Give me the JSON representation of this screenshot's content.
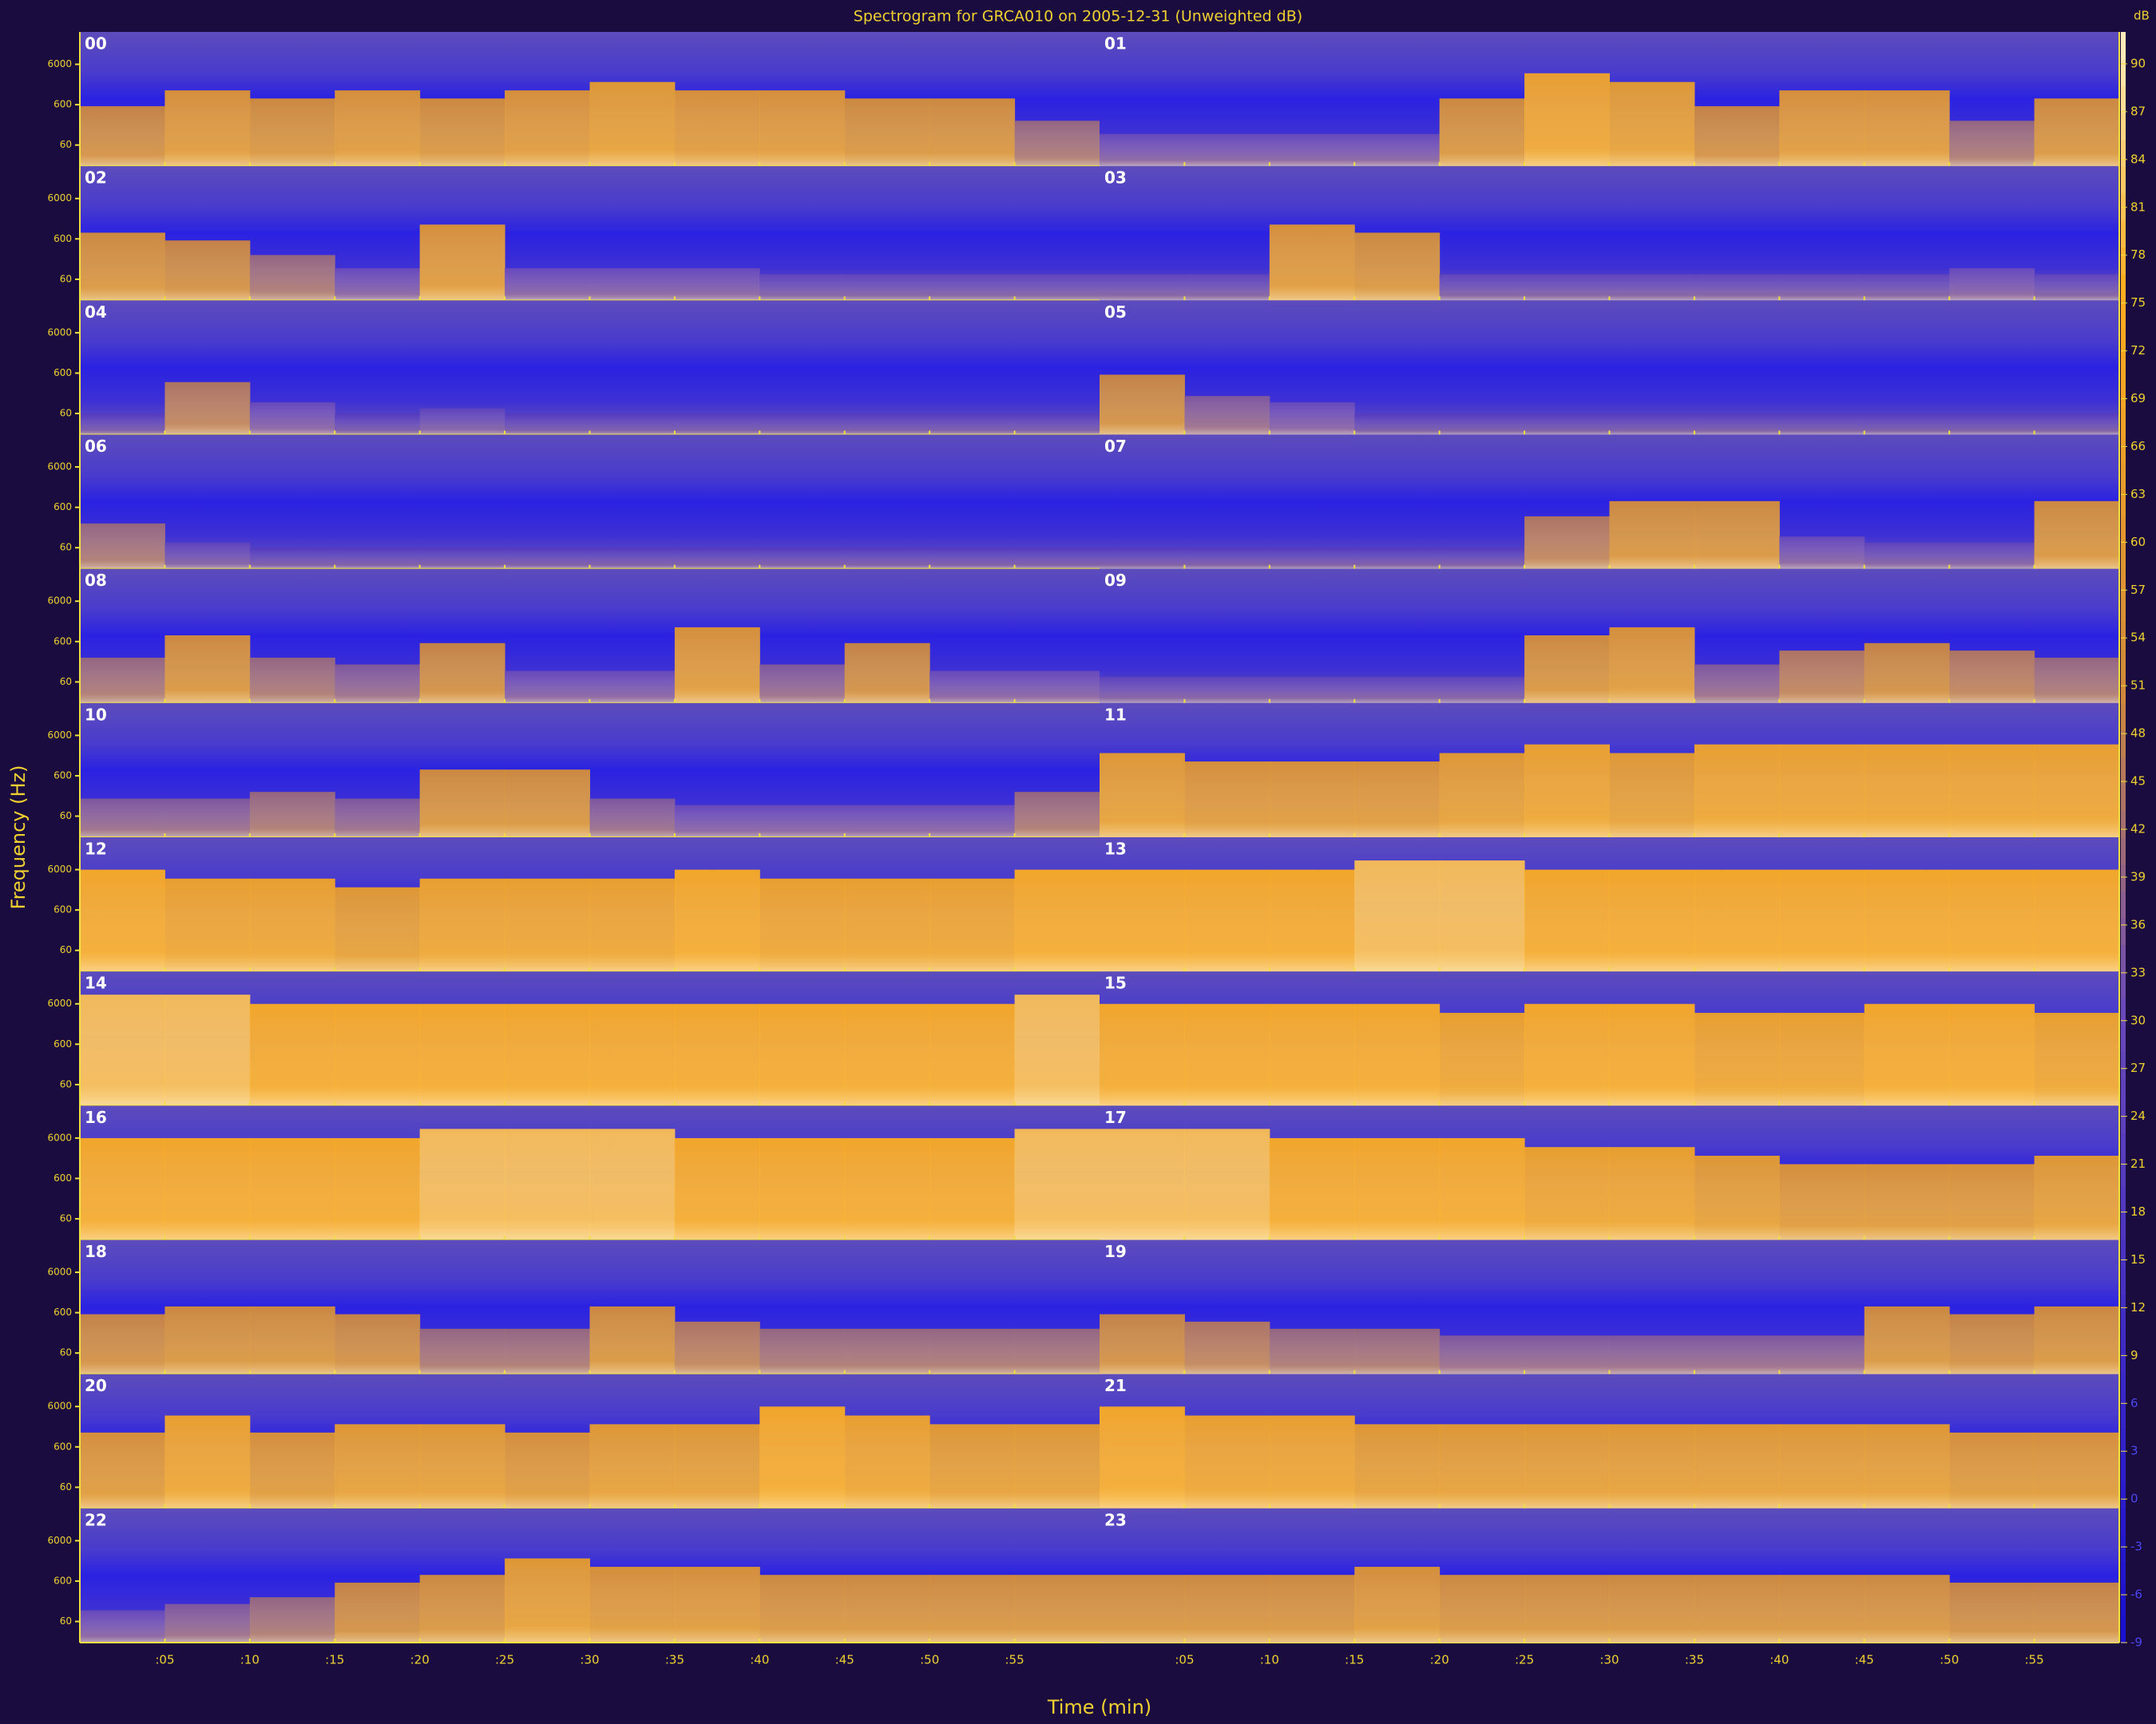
{
  "chart_data": {
    "type": "heatmap",
    "title": "Spectrogram for GRCA010 on 2005-12-31 (Unweighted dB)",
    "xlabel": "Time (min)",
    "ylabel": "Frequency (Hz)",
    "colorbar_label": "dB",
    "hours": [
      "00",
      "01",
      "02",
      "03",
      "04",
      "05",
      "06",
      "07",
      "08",
      "09",
      "10",
      "11",
      "12",
      "13",
      "14",
      "15",
      "16",
      "17",
      "18",
      "19",
      "20",
      "21",
      "22",
      "23"
    ],
    "xlim": [
      0,
      60
    ],
    "xticks": [
      {
        "value": 5,
        "label": ":05"
      },
      {
        "value": 10,
        "label": ":10"
      },
      {
        "value": 15,
        "label": ":15"
      },
      {
        "value": 20,
        "label": ":20"
      },
      {
        "value": 25,
        "label": ":25"
      },
      {
        "value": 30,
        "label": ":30"
      },
      {
        "value": 35,
        "label": ":35"
      },
      {
        "value": 40,
        "label": ":40"
      },
      {
        "value": 45,
        "label": ":45"
      },
      {
        "value": 50,
        "label": ":50"
      },
      {
        "value": 55,
        "label": ":55"
      }
    ],
    "ylim": [
      18,
      38000
    ],
    "ylog": true,
    "yticks": [
      60,
      600,
      6000
    ],
    "zlim": [
      -9,
      92
    ],
    "zticks": [
      90,
      87,
      84,
      81,
      78,
      75,
      72,
      69,
      66,
      63,
      60,
      57,
      54,
      51,
      48,
      45,
      42,
      39,
      36,
      33,
      30,
      27,
      24,
      21,
      18,
      15,
      12,
      9,
      6,
      3,
      0,
      -3,
      -6,
      -9
    ],
    "colormap": [
      [
        -9,
        "#1a10d0"
      ],
      [
        30,
        "#6a4ab8"
      ],
      [
        50,
        "#d08a38"
      ],
      [
        75,
        "#ffae1c"
      ],
      [
        92,
        "#fff2c8"
      ]
    ],
    "levels": [
      [
        50,
        60,
        55,
        60,
        55,
        60,
        65,
        60,
        60,
        55,
        55,
        40
      ],
      [
        30,
        30,
        30,
        30,
        55,
        70,
        65,
        50,
        60,
        60,
        40,
        55
      ],
      [
        55,
        50,
        40,
        30,
        60,
        30,
        30,
        30,
        25,
        25,
        25,
        25
      ],
      [
        25,
        25,
        60,
        55,
        25,
        25,
        25,
        25,
        25,
        25,
        30,
        25
      ],
      [
        20,
        45,
        30,
        20,
        25,
        20,
        20,
        20,
        20,
        20,
        20,
        20
      ],
      [
        50,
        35,
        30,
        20,
        20,
        20,
        20,
        20,
        20,
        20,
        20,
        20
      ],
      [
        40,
        25,
        20,
        20,
        20,
        20,
        20,
        20,
        20,
        20,
        20,
        20
      ],
      [
        20,
        20,
        20,
        20,
        20,
        45,
        55,
        55,
        30,
        25,
        25,
        55
      ],
      [
        40,
        55,
        40,
        35,
        50,
        30,
        30,
        60,
        35,
        50,
        30,
        30
      ],
      [
        25,
        25,
        25,
        25,
        25,
        55,
        60,
        35,
        45,
        50,
        45,
        40
      ],
      [
        35,
        35,
        40,
        35,
        55,
        55,
        35,
        30,
        30,
        30,
        30,
        40
      ],
      [
        65,
        60,
        60,
        60,
        65,
        70,
        65,
        70,
        70,
        70,
        70,
        70
      ],
      [
        75,
        70,
        70,
        65,
        70,
        70,
        70,
        75,
        70,
        70,
        70,
        75
      ],
      [
        75,
        75,
        75,
        80,
        80,
        75,
        75,
        75,
        75,
        75,
        75,
        75
      ],
      [
        80,
        80,
        75,
        75,
        75,
        75,
        75,
        75,
        75,
        75,
        75,
        80
      ],
      [
        75,
        75,
        75,
        75,
        70,
        75,
        75,
        70,
        70,
        75,
        75,
        70
      ],
      [
        75,
        75,
        75,
        75,
        80,
        80,
        80,
        75,
        75,
        75,
        75,
        80
      ],
      [
        80,
        80,
        75,
        75,
        75,
        70,
        70,
        65,
        60,
        60,
        60,
        65
      ],
      [
        50,
        55,
        55,
        50,
        40,
        40,
        55,
        45,
        40,
        40,
        40,
        40
      ],
      [
        50,
        45,
        40,
        40,
        35,
        35,
        35,
        35,
        35,
        55,
        50,
        55
      ],
      [
        60,
        70,
        60,
        65,
        65,
        60,
        65,
        65,
        75,
        70,
        65,
        65
      ],
      [
        75,
        70,
        70,
        65,
        65,
        65,
        65,
        65,
        65,
        65,
        60,
        60
      ],
      [
        30,
        35,
        40,
        50,
        55,
        65,
        60,
        60,
        55,
        55,
        55,
        55
      ],
      [
        55,
        55,
        55,
        60,
        55,
        55,
        55,
        55,
        55,
        55,
        50,
        50
      ]
    ]
  }
}
